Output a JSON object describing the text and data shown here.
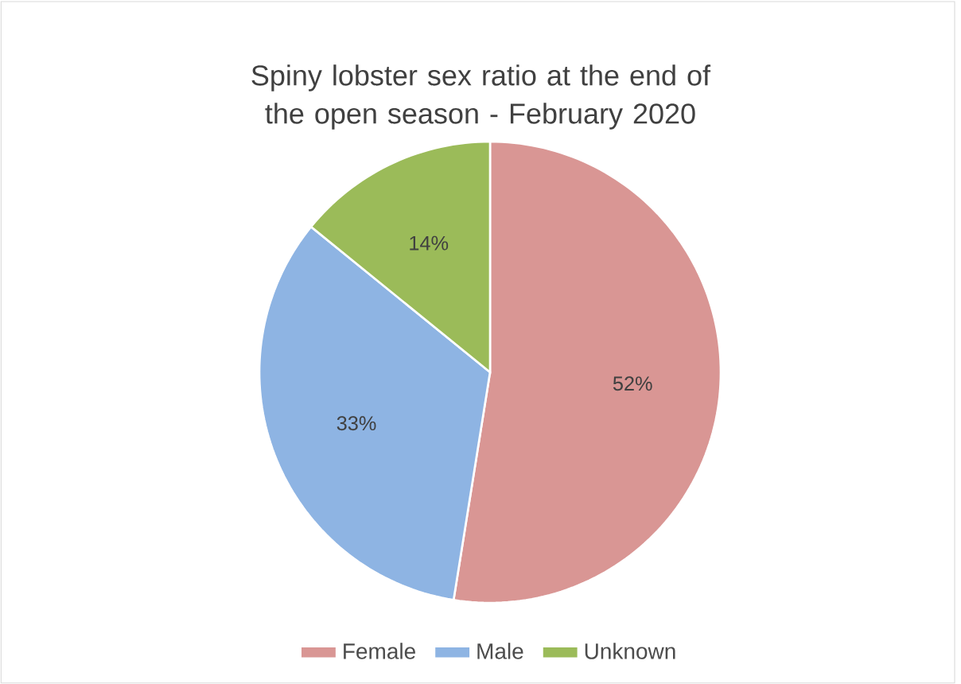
{
  "chart_data": {
    "type": "pie",
    "title": "Spiny lobster sex ratio at the end of the open season - February 2020",
    "categories": [
      "Female",
      "Male",
      "Unknown"
    ],
    "values": [
      52,
      33,
      14
    ],
    "colors": [
      "#d99694",
      "#8eb4e3",
      "#9bbb59"
    ],
    "value_labels": [
      "52%",
      "33%",
      "14%"
    ],
    "legend": "bottom"
  }
}
